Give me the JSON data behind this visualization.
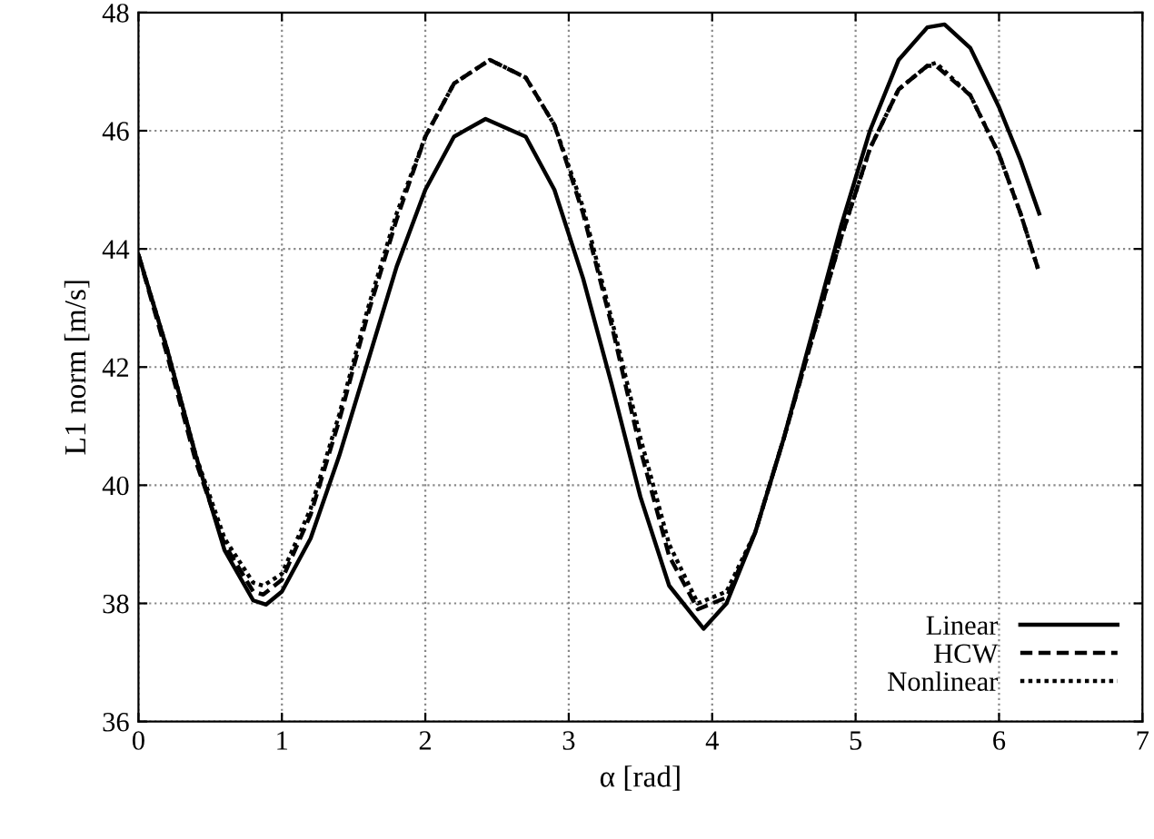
{
  "chart_data": {
    "type": "line",
    "xlabel": "α [rad]",
    "ylabel": "L1 norm [m/s]",
    "xlim": [
      0,
      7
    ],
    "ylim": [
      36,
      48
    ],
    "xticks": [
      0,
      1,
      2,
      3,
      4,
      5,
      6,
      7
    ],
    "yticks": [
      36,
      38,
      40,
      42,
      44,
      46,
      48
    ],
    "grid": true,
    "legend": "bottom right",
    "marker": "none",
    "series": [
      {
        "name": "Linear",
        "color": "#000000",
        "line_style": "solid",
        "x": [
          0,
          0.2,
          0.4,
          0.6,
          0.8,
          0.89,
          1.0,
          1.2,
          1.4,
          1.6,
          1.8,
          2.0,
          2.2,
          2.42,
          2.7,
          2.9,
          3.1,
          3.3,
          3.5,
          3.7,
          3.94,
          4.1,
          4.3,
          4.5,
          4.7,
          4.9,
          5.1,
          5.3,
          5.5,
          5.62,
          5.8,
          6.0,
          6.15,
          6.28
        ],
        "values": [
          43.9,
          42.3,
          40.5,
          38.9,
          38.05,
          37.98,
          38.2,
          39.1,
          40.5,
          42.1,
          43.7,
          45.0,
          45.9,
          46.2,
          45.9,
          45.0,
          43.5,
          41.7,
          39.8,
          38.3,
          37.57,
          38.0,
          39.2,
          40.8,
          42.6,
          44.4,
          46.0,
          47.2,
          47.75,
          47.8,
          47.4,
          46.4,
          45.5,
          44.6
        ]
      },
      {
        "name": "HCW",
        "color": "#000000",
        "line_style": "dashed",
        "x": [
          0,
          0.2,
          0.4,
          0.6,
          0.8,
          0.87,
          1.0,
          1.2,
          1.4,
          1.6,
          1.8,
          2.0,
          2.2,
          2.45,
          2.7,
          2.9,
          3.1,
          3.3,
          3.5,
          3.7,
          3.9,
          4.1,
          4.3,
          4.5,
          4.7,
          4.9,
          5.1,
          5.3,
          5.5,
          5.56,
          5.8,
          6.0,
          6.15,
          6.28
        ],
        "values": [
          43.9,
          42.2,
          40.4,
          39.0,
          38.2,
          38.15,
          38.4,
          39.5,
          41.1,
          42.9,
          44.5,
          45.9,
          46.8,
          47.2,
          46.9,
          46.1,
          44.6,
          42.7,
          40.6,
          38.8,
          37.9,
          38.1,
          39.2,
          40.8,
          42.5,
          44.2,
          45.7,
          46.7,
          47.1,
          47.1,
          46.6,
          45.6,
          44.6,
          43.6
        ]
      },
      {
        "name": "Nonlinear",
        "color": "#000000",
        "line_style": "dotted",
        "x": [
          0,
          0.2,
          0.4,
          0.6,
          0.8,
          0.87,
          1.0,
          1.2,
          1.4,
          1.6,
          1.8,
          2.0,
          2.2,
          2.45,
          2.7,
          2.9,
          3.1,
          3.3,
          3.5,
          3.7,
          3.9,
          4.1,
          4.3,
          4.5,
          4.7,
          4.9,
          5.1,
          5.3,
          5.5,
          5.56,
          5.8,
          6.0,
          6.15,
          6.28
        ],
        "values": [
          43.9,
          42.3,
          40.5,
          39.1,
          38.35,
          38.3,
          38.5,
          39.6,
          41.2,
          43.0,
          44.6,
          45.9,
          46.8,
          47.2,
          46.9,
          46.1,
          44.7,
          42.8,
          40.8,
          39.0,
          38.0,
          38.2,
          39.2,
          40.8,
          42.5,
          44.2,
          45.7,
          46.7,
          47.1,
          47.15,
          46.6,
          45.6,
          44.6,
          43.6
        ]
      }
    ]
  }
}
